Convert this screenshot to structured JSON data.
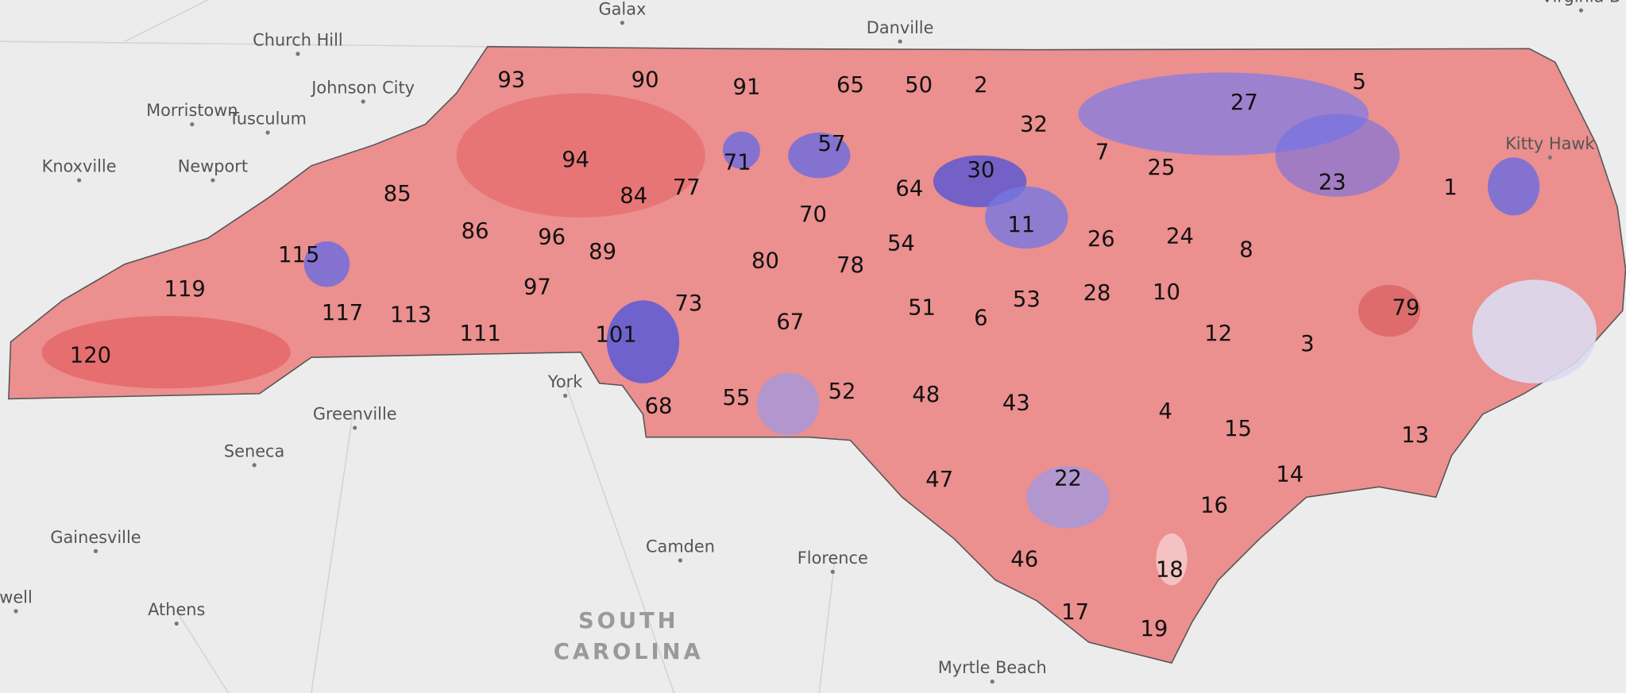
{
  "place_labels": [
    "Galax",
    "Danville",
    "Virginia B",
    "Church Hill",
    "Johnson City",
    "Morristown",
    "Tusculum",
    "Knoxville",
    "Newport",
    "Kitty Hawk",
    "York",
    "Greenville",
    "Seneca",
    "Gainesville",
    "Camden",
    "Florence",
    "well",
    "Athens",
    "Myrtle Beach"
  ],
  "region_label": [
    "SOUTH",
    "CAROLINA"
  ],
  "district_labels": [
    "93",
    "90",
    "91",
    "65",
    "50",
    "2",
    "5",
    "27",
    "32",
    "7",
    "25",
    "23",
    "1",
    "94",
    "85",
    "84",
    "77",
    "71",
    "57",
    "64",
    "30",
    "11",
    "86",
    "96",
    "89",
    "70",
    "54",
    "26",
    "24",
    "8",
    "115",
    "119",
    "97",
    "80",
    "78",
    "51",
    "6",
    "53",
    "28",
    "10",
    "79",
    "117",
    "113",
    "111",
    "73",
    "67",
    "101",
    "12",
    "3",
    "120",
    "68",
    "55",
    "52",
    "48",
    "43",
    "4",
    "15",
    "13",
    "14",
    "47",
    "22",
    "16",
    "46",
    "18",
    "17",
    "19"
  ]
}
